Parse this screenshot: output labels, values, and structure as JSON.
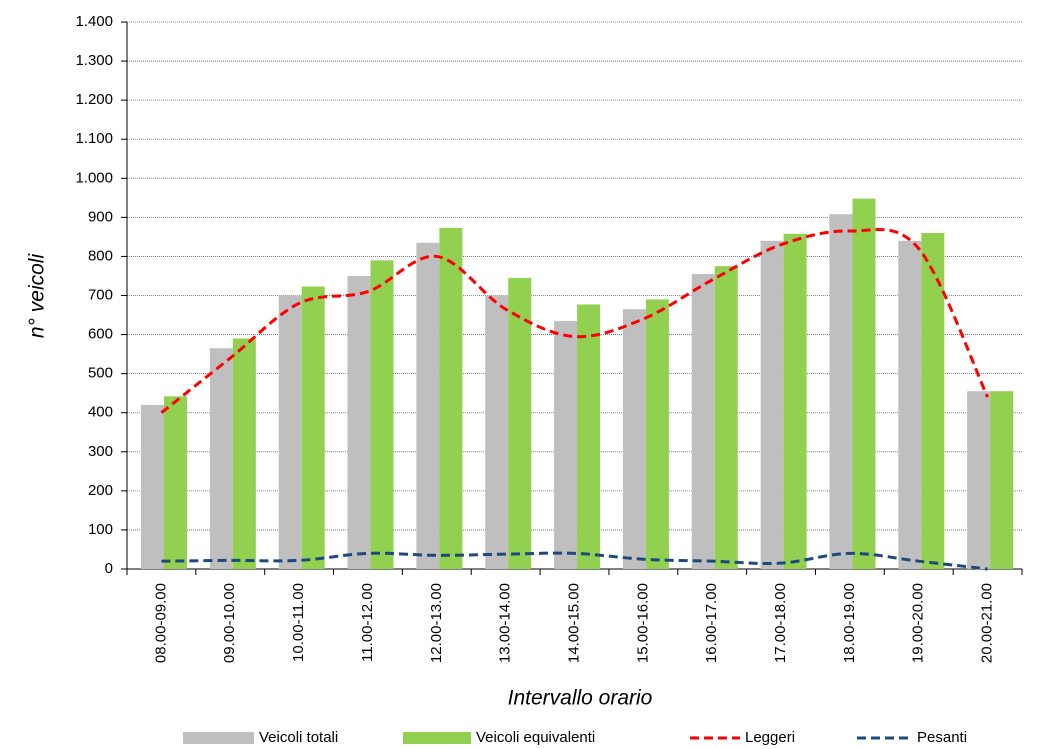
{
  "chart_data": {
    "type": "bar",
    "y_label": "n° veicoli",
    "x_label": "Intervallo orario",
    "categories": [
      "08.00-09.00",
      "09.00-10.00",
      "10.00-11.00",
      "11.00-12.00",
      "12.00-13.00",
      "13.00-14.00",
      "14.00-15.00",
      "15.00-16.00",
      "16.00-17.00",
      "17.00-18.00",
      "18.00-19.00",
      "19.00-20.00",
      "20.00-21.00"
    ],
    "series": [
      {
        "name": "Veicoli totali",
        "type": "bar",
        "color": "#bfbfbf",
        "values": [
          420,
          565,
          700,
          750,
          835,
          700,
          635,
          665,
          755,
          840,
          908,
          840,
          455
        ]
      },
      {
        "name": "Veicoli equivalenti",
        "type": "bar",
        "color": "#92d050",
        "values": [
          442,
          590,
          723,
          790,
          873,
          745,
          677,
          690,
          775,
          858,
          948,
          860,
          455
        ]
      },
      {
        "name": "Leggeri",
        "type": "line",
        "color": "#ff0000",
        "values": [
          400,
          540,
          680,
          710,
          800,
          665,
          595,
          640,
          740,
          830,
          865,
          820,
          440
        ]
      },
      {
        "name": "Pesanti",
        "type": "line",
        "color": "#1f497d",
        "values": [
          20,
          22,
          22,
          40,
          35,
          38,
          40,
          25,
          20,
          15,
          40,
          20,
          0
        ]
      }
    ],
    "ylim": [
      0,
      1400
    ],
    "yticks": [
      0,
      100,
      200,
      300,
      400,
      500,
      600,
      700,
      800,
      900,
      {
        "value": 1000,
        "label": "1.000"
      },
      {
        "value": 1100,
        "label": "1.100"
      },
      {
        "value": 1200,
        "label": "1.200"
      },
      {
        "value": 1300,
        "label": "1.300"
      },
      {
        "value": 1400,
        "label": "1.400"
      }
    ],
    "grid": true,
    "legend": "bottom"
  }
}
